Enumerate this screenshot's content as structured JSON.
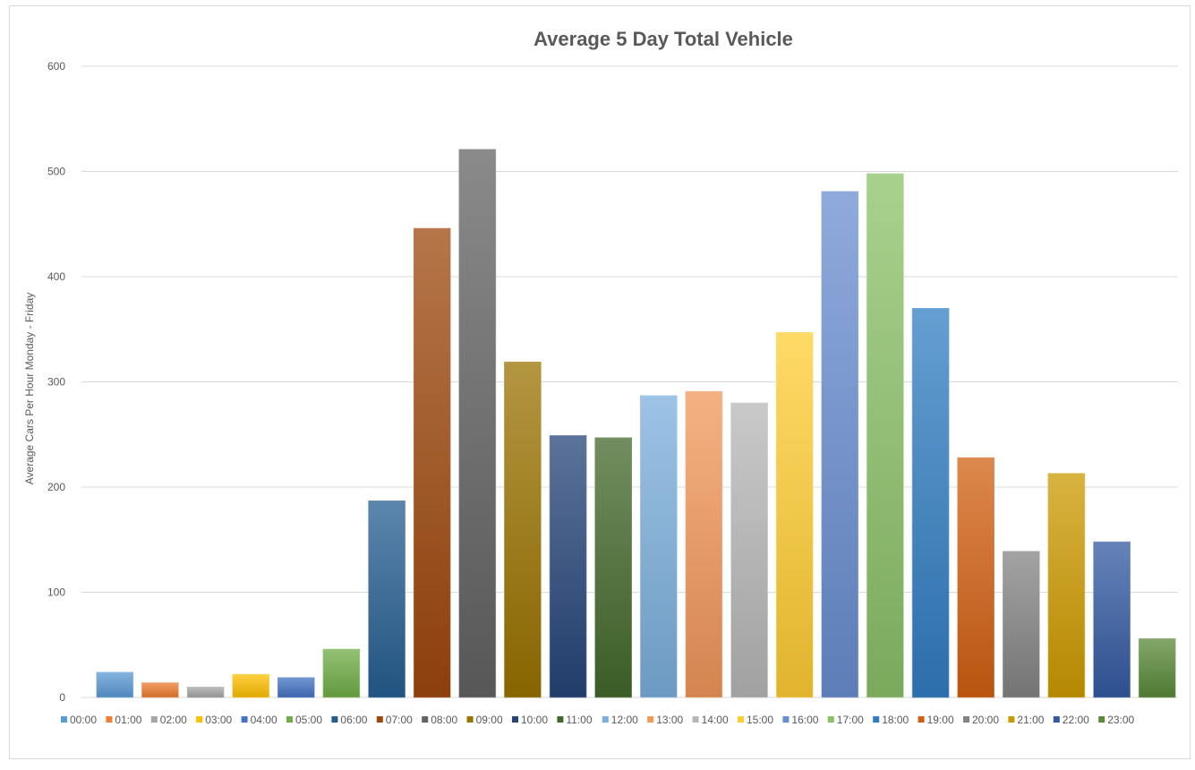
{
  "chart_data": {
    "type": "bar",
    "title": "Average 5 Day Total Vehicle",
    "xlabel": "",
    "ylabel": "Average Cars Per Hour Monday - Friday",
    "ylim": [
      0,
      600
    ],
    "yticks": [
      0,
      100,
      200,
      300,
      400,
      500,
      600
    ],
    "grid": true,
    "legend_position": "bottom",
    "series": [
      {
        "name": "00:00",
        "value": 24,
        "color": "#5B9BD5"
      },
      {
        "name": "01:00",
        "value": 14,
        "color": "#ED7D31"
      },
      {
        "name": "02:00",
        "value": 10,
        "color": "#A5A5A5"
      },
      {
        "name": "03:00",
        "value": 22,
        "color": "#FFC000"
      },
      {
        "name": "04:00",
        "value": 19,
        "color": "#4472C4"
      },
      {
        "name": "05:00",
        "value": 46,
        "color": "#70AD47"
      },
      {
        "name": "06:00",
        "value": 187,
        "color": "#255E91"
      },
      {
        "name": "07:00",
        "value": 446,
        "color": "#9E480E"
      },
      {
        "name": "08:00",
        "value": 521,
        "color": "#636363"
      },
      {
        "name": "09:00",
        "value": 319,
        "color": "#997300"
      },
      {
        "name": "10:00",
        "value": 249,
        "color": "#264478"
      },
      {
        "name": "11:00",
        "value": 247,
        "color": "#43682B"
      },
      {
        "name": "12:00",
        "value": 287,
        "color": "#7CAFDD"
      },
      {
        "name": "13:00",
        "value": 291,
        "color": "#F1975A"
      },
      {
        "name": "14:00",
        "value": 280,
        "color": "#B7B7B7"
      },
      {
        "name": "15:00",
        "value": 347,
        "color": "#FFCD33"
      },
      {
        "name": "16:00",
        "value": 481,
        "color": "#698ED0"
      },
      {
        "name": "17:00",
        "value": 498,
        "color": "#8CC168"
      },
      {
        "name": "18:00",
        "value": 370,
        "color": "#327DC2"
      },
      {
        "name": "19:00",
        "value": 228,
        "color": "#D26012"
      },
      {
        "name": "20:00",
        "value": 139,
        "color": "#848484"
      },
      {
        "name": "21:00",
        "value": 213,
        "color": "#CC9A00"
      },
      {
        "name": "22:00",
        "value": 148,
        "color": "#335AA1"
      },
      {
        "name": "23:00",
        "value": 56,
        "color": "#5A8A39"
      }
    ]
  }
}
